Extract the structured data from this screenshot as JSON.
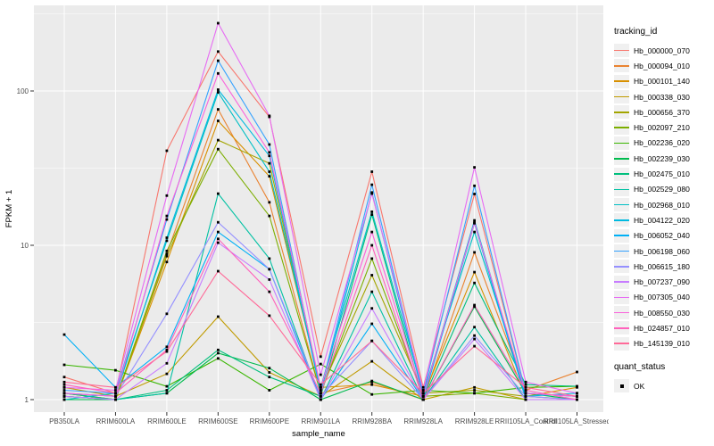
{
  "chart_data": {
    "type": "line",
    "title": "",
    "xlabel": "sample_name",
    "ylabel": "FPKM + 1",
    "y_scale": "log10",
    "ylim": [
      1,
      340
    ],
    "y_ticks": [
      1,
      10,
      100
    ],
    "grid": true,
    "legend_position": "right",
    "legend_title": "tracking_id",
    "panel_bg": "#EBEBEB",
    "grid_color": "#FFFFFF",
    "point_color": "#000000",
    "tick_label_color": "#4D4D4D",
    "point_shape": "square",
    "x_categories": [
      "PB350LA",
      "RRIM600LA",
      "RRIM600LE",
      "RRIM600SE",
      "RRIM600PE",
      "RRIM901LA",
      "RRIM928BA",
      "RRIM928LA",
      "RRIM928LE",
      "RRII105LA_Control",
      "RRII105LA_Stressed"
    ],
    "series": [
      {
        "name": "Hb_000000_070",
        "color": "#F8766D",
        "values": [
          1.4,
          1.1,
          41,
          180,
          68,
          1.9,
          30,
          1.2,
          21.5,
          1.1,
          1.05
        ]
      },
      {
        "name": "Hb_000094_010",
        "color": "#EA8331",
        "values": [
          1.1,
          1.0,
          8.8,
          76,
          19,
          1.1,
          1.3,
          1.0,
          9.0,
          1.15,
          1.51
        ]
      },
      {
        "name": "Hb_000101_140",
        "color": "#D89000",
        "values": [
          1.05,
          1.0,
          7.8,
          64,
          28,
          1.2,
          1.25,
          1.05,
          6.7,
          1.05,
          1.2
        ]
      },
      {
        "name": "Hb_000338_030",
        "color": "#C09B00",
        "values": [
          1.2,
          1.05,
          1.47,
          3.45,
          1.5,
          1.05,
          1.77,
          1.0,
          1.2,
          1.0,
          1.0
        ]
      },
      {
        "name": "Hb_000656_370",
        "color": "#A3A500",
        "values": [
          1.1,
          1.0,
          8.5,
          48,
          34,
          1.15,
          6.4,
          1.1,
          1.15,
          1.05,
          1.0
        ]
      },
      {
        "name": "Hb_002097_210",
        "color": "#7CAE00",
        "values": [
          1.05,
          1.0,
          9.2,
          42,
          15.5,
          1.1,
          8.2,
          1.05,
          1.1,
          1.0,
          1.0
        ]
      },
      {
        "name": "Hb_002236_020",
        "color": "#39B600",
        "values": [
          1.68,
          1.55,
          1.22,
          1.85,
          1.15,
          1.7,
          1.08,
          1.15,
          1.1,
          1.2,
          1.22
        ]
      },
      {
        "name": "Hb_002239_030",
        "color": "#00BB4E",
        "values": [
          1.0,
          1.0,
          1.1,
          2.0,
          1.6,
          1.0,
          1.32,
          1.0,
          4.0,
          1.1,
          1.0
        ]
      },
      {
        "name": "Hb_002475_010",
        "color": "#00BF7D",
        "values": [
          1.1,
          1.0,
          1.15,
          2.1,
          1.4,
          1.05,
          15.8,
          1.0,
          5.7,
          1.25,
          1.22
        ]
      },
      {
        "name": "Hb_002529_080",
        "color": "#00C1A3",
        "values": [
          1.05,
          1.0,
          1.1,
          21.6,
          8.2,
          1.0,
          5.0,
          1.0,
          2.95,
          1.0,
          1.0
        ]
      },
      {
        "name": "Hb_002968_010",
        "color": "#00BFC4",
        "values": [
          1.0,
          1.1,
          10.7,
          98,
          30,
          1.2,
          16.5,
          1.1,
          12.2,
          1.1,
          1.05
        ]
      },
      {
        "name": "Hb_004122_020",
        "color": "#00BAE0",
        "values": [
          1.1,
          1.05,
          11.2,
          102,
          38,
          1.1,
          22,
          1.05,
          14.5,
          1.05,
          1.1
        ]
      },
      {
        "name": "Hb_006052_040",
        "color": "#00B0F6",
        "values": [
          2.64,
          1.2,
          2.2,
          12.2,
          7.0,
          1.0,
          3.1,
          1.0,
          13.9,
          1.0,
          1.0
        ]
      },
      {
        "name": "Hb_006198_060",
        "color": "#35A2FF",
        "values": [
          1.15,
          1.1,
          14.7,
          157,
          45,
          1.15,
          24.7,
          1.1,
          24.3,
          1.1,
          1.05
        ]
      },
      {
        "name": "Hb_006615_180",
        "color": "#9590FF",
        "values": [
          1.1,
          1.05,
          3.6,
          14.1,
          7.0,
          1.05,
          2.4,
          1.0,
          2.6,
          1.05,
          1.0
        ]
      },
      {
        "name": "Hb_007237_090",
        "color": "#C77CFF",
        "values": [
          1.05,
          1.0,
          1.72,
          10.4,
          6.0,
          1.0,
          3.9,
          1.0,
          2.47,
          1.0,
          1.0
        ]
      },
      {
        "name": "Hb_007305_040",
        "color": "#E76BF3",
        "values": [
          1.2,
          1.15,
          21,
          275,
          69,
          1.45,
          21.6,
          1.15,
          32,
          1.3,
          1.1
        ]
      },
      {
        "name": "Hb_008550_030",
        "color": "#FA62DB",
        "values": [
          1.1,
          1.05,
          15.5,
          130,
          40,
          1.2,
          12.2,
          1.05,
          14.0,
          1.1,
          1.05
        ]
      },
      {
        "name": "Hb_024857_010",
        "color": "#FF62BC",
        "values": [
          1.25,
          1.1,
          2.1,
          11.0,
          5.0,
          1.1,
          10.0,
          1.0,
          4.1,
          1.15,
          1.0
        ]
      },
      {
        "name": "Hb_145139_010",
        "color": "#FF6A98",
        "values": [
          1.3,
          1.2,
          2.05,
          6.8,
          3.5,
          1.25,
          2.4,
          1.1,
          2.22,
          1.2,
          1.05
        ]
      }
    ],
    "quant_legend": {
      "title": "quant_status",
      "items": [
        {
          "label": "OK",
          "marker": "square",
          "color": "#000000"
        }
      ]
    }
  }
}
